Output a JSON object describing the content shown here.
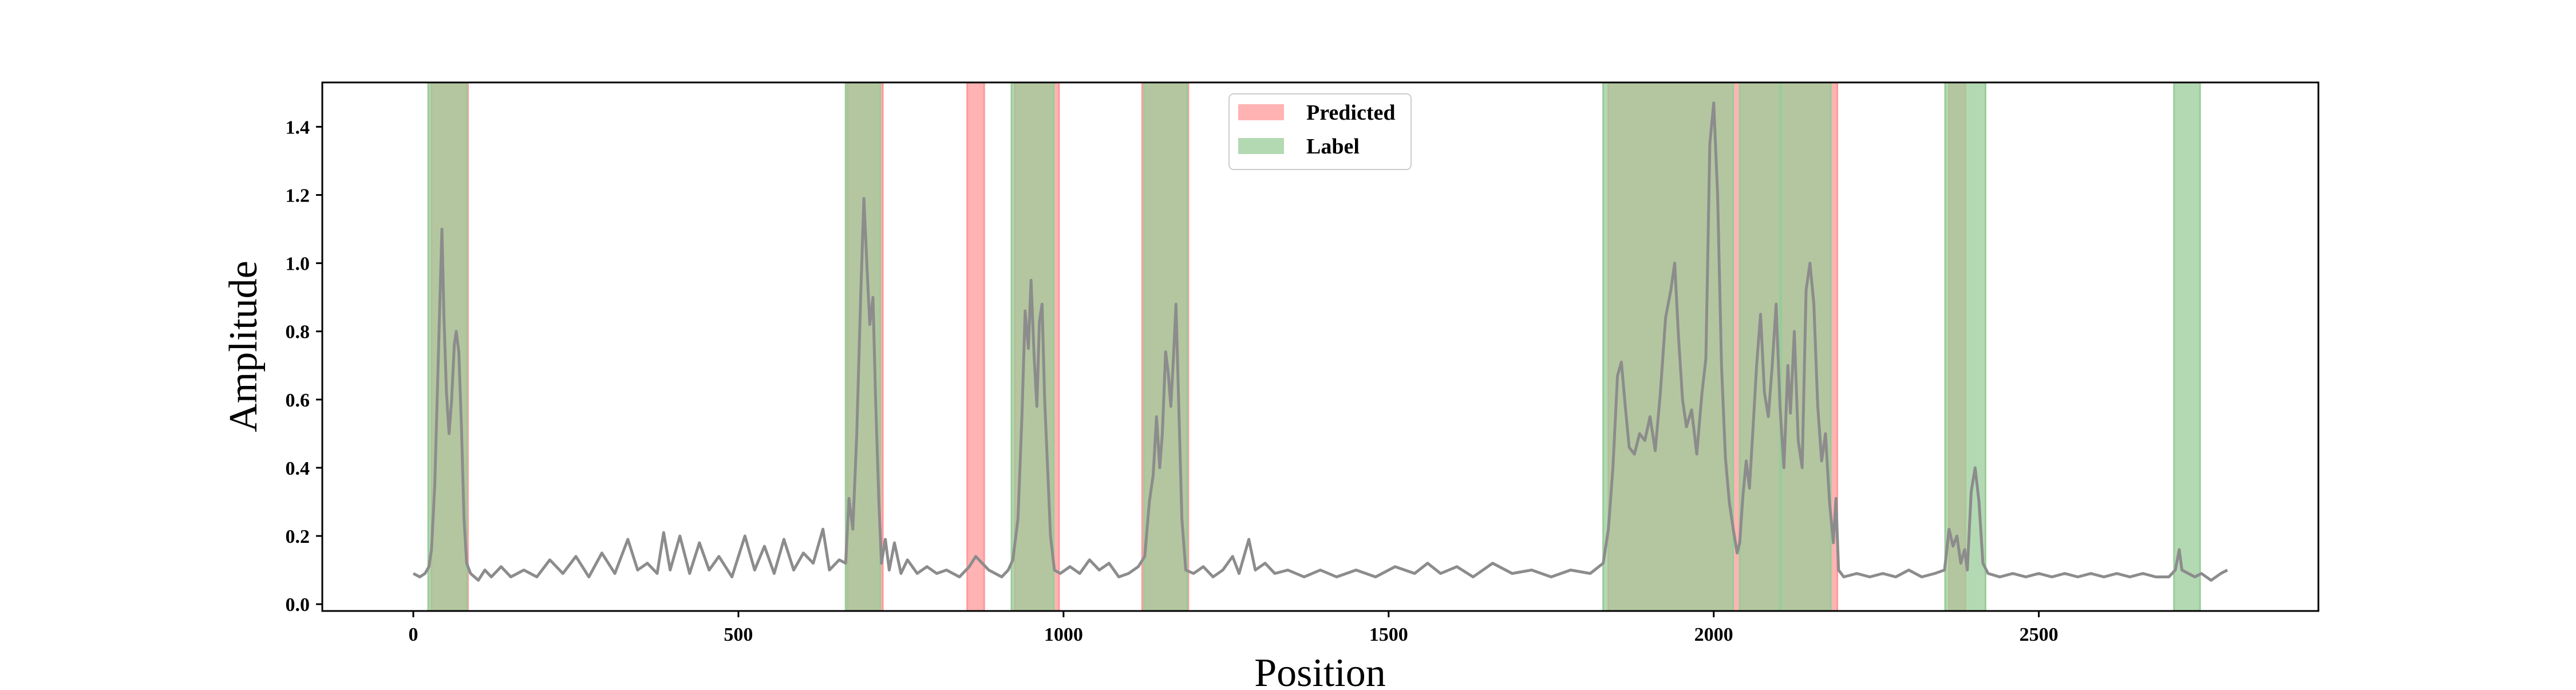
{
  "chart_data": {
    "type": "area",
    "xlabel": "Position",
    "ylabel": "Amplitude",
    "xlim": [
      -140,
      2930
    ],
    "ylim": [
      -0.02,
      1.53
    ],
    "xticks": [
      0,
      500,
      1000,
      1500,
      2000,
      2500
    ],
    "yticks": [
      0.0,
      0.2,
      0.4,
      0.6,
      0.8,
      1.0,
      1.2,
      1.4
    ],
    "legend_position": "top-center",
    "grid": false,
    "legend": [
      {
        "key": "predicted",
        "label": "Predicted"
      },
      {
        "key": "label",
        "label": "Label"
      }
    ],
    "series": [
      {
        "key": "signal",
        "color": "#8c8c8c",
        "points": [
          [
            0,
            0.09
          ],
          [
            10,
            0.08
          ],
          [
            18,
            0.09
          ],
          [
            24,
            0.11
          ],
          [
            28,
            0.16
          ],
          [
            33,
            0.35
          ],
          [
            37,
            0.62
          ],
          [
            41,
            0.9
          ],
          [
            44,
            1.1
          ],
          [
            47,
            0.85
          ],
          [
            51,
            0.62
          ],
          [
            55,
            0.5
          ],
          [
            59,
            0.6
          ],
          [
            63,
            0.76
          ],
          [
            66,
            0.8
          ],
          [
            70,
            0.74
          ],
          [
            74,
            0.52
          ],
          [
            78,
            0.25
          ],
          [
            82,
            0.12
          ],
          [
            88,
            0.09
          ],
          [
            100,
            0.07
          ],
          [
            110,
            0.1
          ],
          [
            120,
            0.08
          ],
          [
            135,
            0.11
          ],
          [
            150,
            0.08
          ],
          [
            170,
            0.1
          ],
          [
            190,
            0.08
          ],
          [
            210,
            0.13
          ],
          [
            230,
            0.09
          ],
          [
            250,
            0.14
          ],
          [
            270,
            0.08
          ],
          [
            290,
            0.15
          ],
          [
            310,
            0.09
          ],
          [
            330,
            0.19
          ],
          [
            345,
            0.1
          ],
          [
            360,
            0.12
          ],
          [
            375,
            0.09
          ],
          [
            385,
            0.21
          ],
          [
            395,
            0.1
          ],
          [
            410,
            0.2
          ],
          [
            425,
            0.09
          ],
          [
            440,
            0.18
          ],
          [
            455,
            0.1
          ],
          [
            470,
            0.14
          ],
          [
            490,
            0.08
          ],
          [
            510,
            0.2
          ],
          [
            525,
            0.1
          ],
          [
            540,
            0.17
          ],
          [
            555,
            0.09
          ],
          [
            570,
            0.19
          ],
          [
            585,
            0.1
          ],
          [
            600,
            0.15
          ],
          [
            615,
            0.12
          ],
          [
            630,
            0.22
          ],
          [
            640,
            0.1
          ],
          [
            655,
            0.13
          ],
          [
            665,
            0.12
          ],
          [
            670,
            0.31
          ],
          [
            676,
            0.22
          ],
          [
            682,
            0.5
          ],
          [
            688,
            0.9
          ],
          [
            693,
            1.19
          ],
          [
            698,
            0.98
          ],
          [
            702,
            0.82
          ],
          [
            707,
            0.9
          ],
          [
            711,
            0.6
          ],
          [
            716,
            0.3
          ],
          [
            720,
            0.12
          ],
          [
            726,
            0.19
          ],
          [
            732,
            0.1
          ],
          [
            740,
            0.18
          ],
          [
            750,
            0.09
          ],
          [
            760,
            0.13
          ],
          [
            775,
            0.09
          ],
          [
            790,
            0.11
          ],
          [
            805,
            0.09
          ],
          [
            820,
            0.1
          ],
          [
            840,
            0.08
          ],
          [
            855,
            0.11
          ],
          [
            865,
            0.14
          ],
          [
            875,
            0.12
          ],
          [
            885,
            0.1
          ],
          [
            895,
            0.09
          ],
          [
            905,
            0.08
          ],
          [
            915,
            0.1
          ],
          [
            922,
            0.13
          ],
          [
            930,
            0.25
          ],
          [
            936,
            0.55
          ],
          [
            941,
            0.86
          ],
          [
            946,
            0.75
          ],
          [
            950,
            0.95
          ],
          [
            955,
            0.72
          ],
          [
            959,
            0.58
          ],
          [
            963,
            0.83
          ],
          [
            967,
            0.88
          ],
          [
            971,
            0.6
          ],
          [
            975,
            0.42
          ],
          [
            980,
            0.2
          ],
          [
            986,
            0.1
          ],
          [
            995,
            0.09
          ],
          [
            1010,
            0.11
          ],
          [
            1025,
            0.09
          ],
          [
            1040,
            0.13
          ],
          [
            1055,
            0.1
          ],
          [
            1070,
            0.12
          ],
          [
            1085,
            0.08
          ],
          [
            1100,
            0.09
          ],
          [
            1115,
            0.11
          ],
          [
            1125,
            0.14
          ],
          [
            1132,
            0.3
          ],
          [
            1138,
            0.38
          ],
          [
            1143,
            0.55
          ],
          [
            1148,
            0.4
          ],
          [
            1152,
            0.5
          ],
          [
            1157,
            0.74
          ],
          [
            1161,
            0.68
          ],
          [
            1165,
            0.58
          ],
          [
            1169,
            0.72
          ],
          [
            1173,
            0.88
          ],
          [
            1177,
            0.6
          ],
          [
            1182,
            0.25
          ],
          [
            1188,
            0.1
          ],
          [
            1200,
            0.09
          ],
          [
            1215,
            0.11
          ],
          [
            1230,
            0.08
          ],
          [
            1245,
            0.1
          ],
          [
            1260,
            0.14
          ],
          [
            1270,
            0.09
          ],
          [
            1285,
            0.19
          ],
          [
            1295,
            0.1
          ],
          [
            1310,
            0.12
          ],
          [
            1325,
            0.09
          ],
          [
            1345,
            0.1
          ],
          [
            1370,
            0.08
          ],
          [
            1395,
            0.1
          ],
          [
            1420,
            0.08
          ],
          [
            1450,
            0.1
          ],
          [
            1480,
            0.08
          ],
          [
            1510,
            0.11
          ],
          [
            1540,
            0.09
          ],
          [
            1560,
            0.12
          ],
          [
            1580,
            0.09
          ],
          [
            1605,
            0.11
          ],
          [
            1630,
            0.08
          ],
          [
            1660,
            0.12
          ],
          [
            1690,
            0.09
          ],
          [
            1720,
            0.1
          ],
          [
            1750,
            0.08
          ],
          [
            1780,
            0.1
          ],
          [
            1810,
            0.09
          ],
          [
            1830,
            0.12
          ],
          [
            1838,
            0.22
          ],
          [
            1845,
            0.4
          ],
          [
            1852,
            0.67
          ],
          [
            1858,
            0.71
          ],
          [
            1864,
            0.58
          ],
          [
            1870,
            0.46
          ],
          [
            1878,
            0.44
          ],
          [
            1886,
            0.5
          ],
          [
            1894,
            0.48
          ],
          [
            1902,
            0.55
          ],
          [
            1910,
            0.45
          ],
          [
            1918,
            0.62
          ],
          [
            1926,
            0.84
          ],
          [
            1934,
            0.92
          ],
          [
            1940,
            1.0
          ],
          [
            1946,
            0.78
          ],
          [
            1952,
            0.6
          ],
          [
            1958,
            0.52
          ],
          [
            1966,
            0.57
          ],
          [
            1974,
            0.44
          ],
          [
            1982,
            0.62
          ],
          [
            1988,
            0.72
          ],
          [
            1994,
            1.35
          ],
          [
            2000,
            1.47
          ],
          [
            2006,
            1.2
          ],
          [
            2012,
            0.7
          ],
          [
            2018,
            0.43
          ],
          [
            2024,
            0.3
          ],
          [
            2030,
            0.22
          ],
          [
            2036,
            0.15
          ],
          [
            2040,
            0.18
          ],
          [
            2045,
            0.32
          ],
          [
            2050,
            0.42
          ],
          [
            2055,
            0.34
          ],
          [
            2060,
            0.5
          ],
          [
            2066,
            0.7
          ],
          [
            2072,
            0.85
          ],
          [
            2078,
            0.62
          ],
          [
            2084,
            0.55
          ],
          [
            2090,
            0.7
          ],
          [
            2096,
            0.88
          ],
          [
            2102,
            0.58
          ],
          [
            2108,
            0.4
          ],
          [
            2114,
            0.7
          ],
          [
            2118,
            0.56
          ],
          [
            2124,
            0.8
          ],
          [
            2130,
            0.48
          ],
          [
            2136,
            0.4
          ],
          [
            2142,
            0.92
          ],
          [
            2148,
            1.0
          ],
          [
            2154,
            0.88
          ],
          [
            2160,
            0.58
          ],
          [
            2166,
            0.42
          ],
          [
            2172,
            0.5
          ],
          [
            2178,
            0.3
          ],
          [
            2184,
            0.18
          ],
          [
            2188,
            0.31
          ],
          [
            2192,
            0.1
          ],
          [
            2200,
            0.08
          ],
          [
            2220,
            0.09
          ],
          [
            2240,
            0.08
          ],
          [
            2260,
            0.09
          ],
          [
            2280,
            0.08
          ],
          [
            2300,
            0.1
          ],
          [
            2320,
            0.08
          ],
          [
            2340,
            0.09
          ],
          [
            2355,
            0.1
          ],
          [
            2362,
            0.22
          ],
          [
            2368,
            0.17
          ],
          [
            2374,
            0.2
          ],
          [
            2380,
            0.12
          ],
          [
            2386,
            0.16
          ],
          [
            2390,
            0.1
          ],
          [
            2396,
            0.33
          ],
          [
            2402,
            0.4
          ],
          [
            2408,
            0.3
          ],
          [
            2414,
            0.12
          ],
          [
            2422,
            0.09
          ],
          [
            2440,
            0.08
          ],
          [
            2460,
            0.09
          ],
          [
            2480,
            0.08
          ],
          [
            2500,
            0.09
          ],
          [
            2520,
            0.08
          ],
          [
            2540,
            0.09
          ],
          [
            2560,
            0.08
          ],
          [
            2580,
            0.09
          ],
          [
            2600,
            0.08
          ],
          [
            2620,
            0.09
          ],
          [
            2640,
            0.08
          ],
          [
            2660,
            0.09
          ],
          [
            2680,
            0.08
          ],
          [
            2700,
            0.08
          ],
          [
            2710,
            0.1
          ],
          [
            2716,
            0.16
          ],
          [
            2720,
            0.1
          ],
          [
            2730,
            0.09
          ],
          [
            2740,
            0.08
          ],
          [
            2750,
            0.09
          ],
          [
            2765,
            0.07
          ],
          [
            2780,
            0.09
          ],
          [
            2790,
            0.1
          ]
        ]
      }
    ],
    "regions": {
      "predicted": {
        "color": "#ff9999",
        "intervals": [
          [
            28,
            84
          ],
          [
            668,
            722
          ],
          [
            852,
            878
          ],
          [
            925,
            993
          ],
          [
            1121,
            1192
          ],
          [
            1838,
            2190
          ],
          [
            2362,
            2387
          ]
        ]
      },
      "label": {
        "color": "#99cc99",
        "intervals": [
          [
            23,
            82
          ],
          [
            665,
            718
          ],
          [
            920,
            985
          ],
          [
            1124,
            1190
          ],
          [
            1830,
            2030
          ],
          [
            2040,
            2102
          ],
          [
            2104,
            2180
          ],
          [
            2356,
            2418
          ],
          [
            2708,
            2748
          ]
        ]
      }
    }
  }
}
